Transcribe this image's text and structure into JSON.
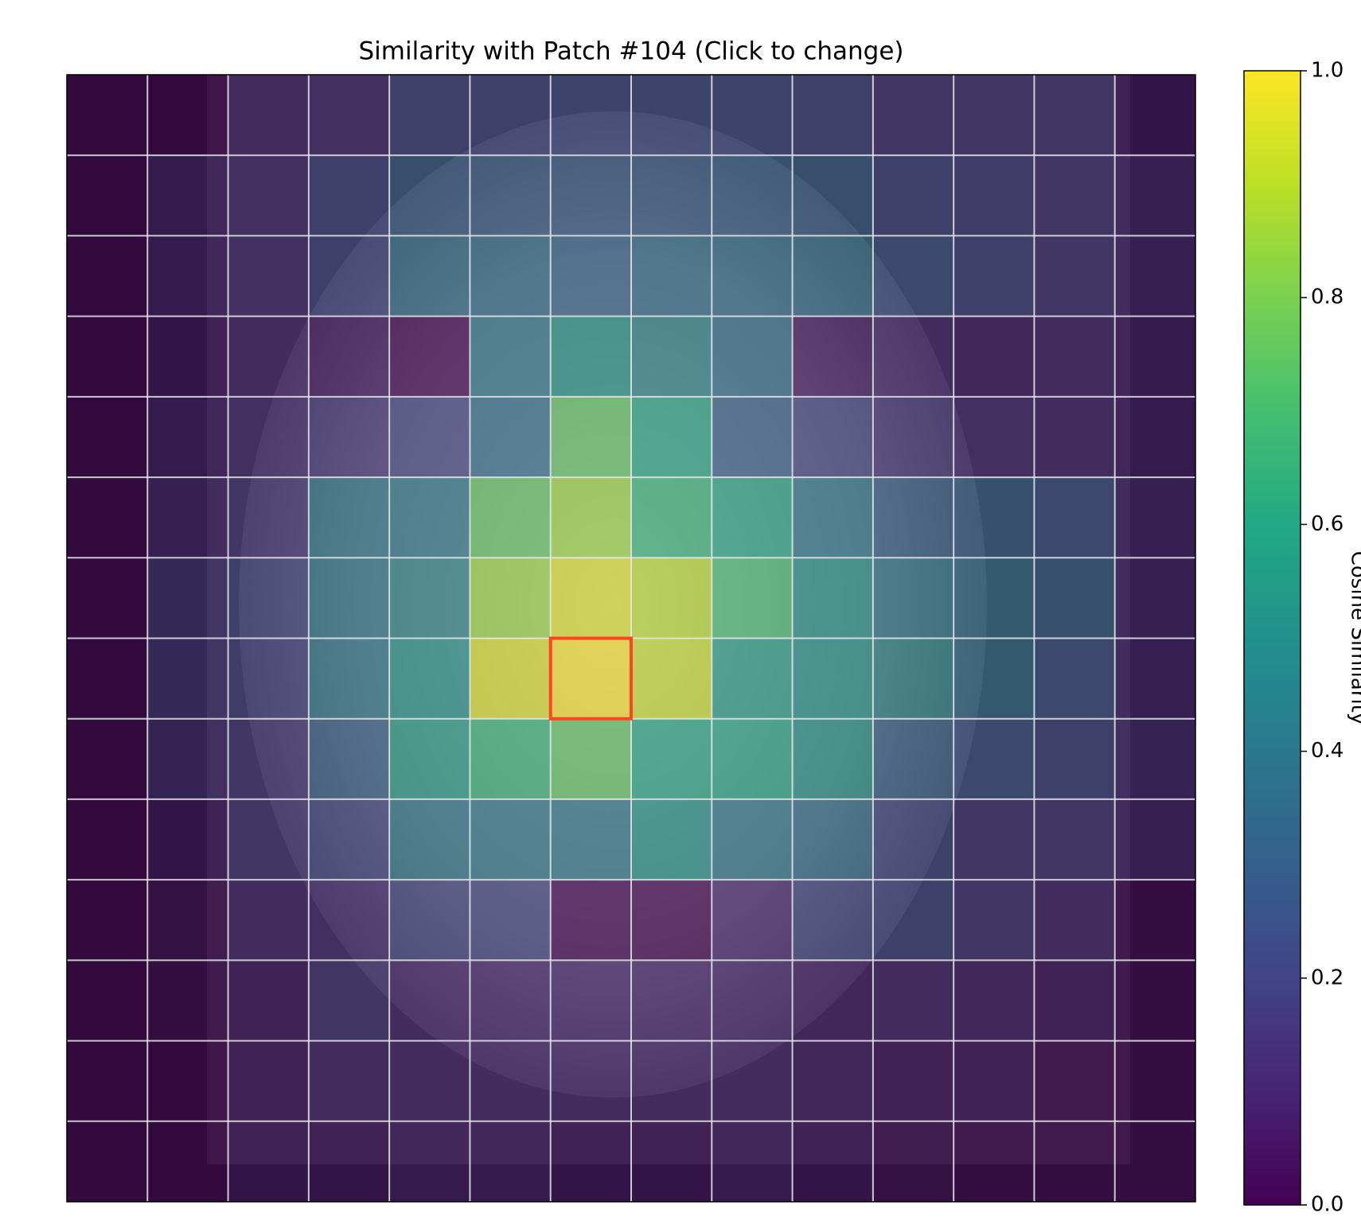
{
  "chart_data": {
    "type": "heatmap",
    "title": "Similarity with Patch #104 (Click to change)",
    "colormap": "viridis",
    "colorbar_label": "Cosine Similarity",
    "zlim": [
      0,
      1
    ],
    "zticks": [
      {
        "value": 0,
        "label": "0.0"
      },
      0.2,
      0.4,
      0.6,
      0.8,
      {
        "value": 1,
        "label": "1.0"
      }
    ],
    "highlight": {
      "row": 7,
      "col": 6,
      "color": "#ff4422"
    },
    "grid": true,
    "values": [
      [
        0,
        0,
        0.1,
        0.12,
        0.2,
        0.2,
        0.22,
        0.22,
        0.22,
        0.2,
        0.15,
        0.15,
        0.15,
        0.05
      ],
      [
        0,
        0.08,
        0.12,
        0.2,
        0.28,
        0.28,
        0.28,
        0.28,
        0.3,
        0.28,
        0.2,
        0.18,
        0.15,
        0.1
      ],
      [
        0,
        0.08,
        0.12,
        0.2,
        0.35,
        0.35,
        0.32,
        0.35,
        0.35,
        0.35,
        0.25,
        0.2,
        0.15,
        0.1
      ],
      [
        0,
        0.05,
        0.1,
        0.05,
        0,
        0.4,
        0.5,
        0.45,
        0.35,
        0.05,
        0.1,
        0.08,
        0.1,
        0.08
      ],
      [
        0,
        0.08,
        0.12,
        0.15,
        0.2,
        0.35,
        0.75,
        0.6,
        0.3,
        0.2,
        0.15,
        0.12,
        0.1,
        0.08
      ],
      [
        0,
        0.1,
        0.15,
        0.4,
        0.4,
        0.75,
        0.85,
        0.65,
        0.6,
        0.4,
        0.3,
        0.3,
        0.25,
        0.1
      ],
      [
        0,
        0.15,
        0.2,
        0.4,
        0.45,
        0.85,
        0.95,
        0.9,
        0.7,
        0.5,
        0.4,
        0.35,
        0.3,
        0.1
      ],
      [
        0,
        0.15,
        0.18,
        0.4,
        0.5,
        0.95,
        1,
        0.92,
        0.55,
        0.5,
        0.45,
        0.35,
        0.25,
        0.1
      ],
      [
        0,
        0.12,
        0.15,
        0.3,
        0.55,
        0.65,
        0.75,
        0.6,
        0.6,
        0.5,
        0.3,
        0.25,
        0.2,
        0.12
      ],
      [
        0,
        0.05,
        0.15,
        0.2,
        0.4,
        0.4,
        0.4,
        0.5,
        0.4,
        0.35,
        0.2,
        0.15,
        0.15,
        0.1
      ],
      [
        0,
        0.03,
        0.1,
        0.12,
        0.2,
        0.2,
        0,
        0,
        0.1,
        0.2,
        0.2,
        0.15,
        0.1,
        0.02
      ],
      [
        0,
        0.02,
        0.05,
        0.15,
        0.1,
        0.1,
        0.1,
        0.1,
        0.1,
        0.08,
        0.1,
        0.08,
        0.05,
        0.02
      ],
      [
        0,
        0,
        0.05,
        0.1,
        0.1,
        0.1,
        0.1,
        0.1,
        0.1,
        0.08,
        0.05,
        0.05,
        0.02,
        0.02
      ],
      [
        0,
        0,
        0.05,
        0.05,
        0.08,
        0.08,
        0.05,
        0.05,
        0.08,
        0.05,
        0.03,
        0.02,
        0.02,
        0.02
      ]
    ]
  }
}
